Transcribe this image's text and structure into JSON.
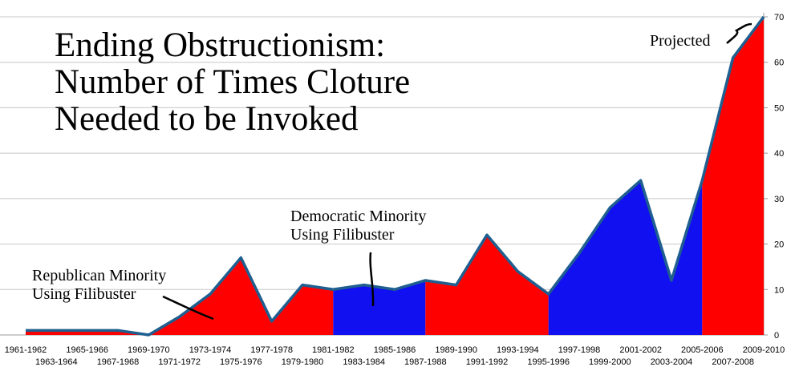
{
  "chart_data": {
    "type": "area",
    "title": [
      "Ending Obstructionism:",
      "Number of Times Cloture",
      "Needed to be Invoked"
    ],
    "categories": [
      "1961-1962",
      "1963-1964",
      "1965-1966",
      "1967-1968",
      "1969-1970",
      "1971-1972",
      "1973-1974",
      "1975-1976",
      "1977-1978",
      "1979-1980",
      "1981-1982",
      "1983-1984",
      "1985-1986",
      "1987-1988",
      "1989-1990",
      "1991-1992",
      "1993-1994",
      "1995-1996",
      "1997-1998",
      "1999-2000",
      "2001-2002",
      "2003-2004",
      "2005-2006",
      "2007-2008",
      "2009-2010"
    ],
    "values": [
      1,
      1,
      1,
      1,
      0,
      4,
      9,
      17,
      3,
      11,
      10,
      11,
      10,
      12,
      11,
      22,
      14,
      9,
      18,
      28,
      34,
      12,
      34,
      61,
      70
    ],
    "line_color": "#1f5f8f",
    "segments": [
      {
        "from": "1961-1962",
        "to": "1981-1982",
        "color": "#ff0000"
      },
      {
        "from": "1981-1982",
        "to": "1987-1988",
        "color": "#1010f0"
      },
      {
        "from": "1987-1988",
        "to": "1995-1996",
        "color": "#ff0000"
      },
      {
        "from": "1995-1996",
        "to": "2005-2006",
        "color": "#1010f0"
      },
      {
        "from": "2005-2006",
        "to": "2009-2010",
        "color": "#ff0000"
      }
    ],
    "ylim": [
      0,
      70
    ],
    "yticks": [
      0,
      10,
      20,
      30,
      40,
      50,
      60,
      70
    ],
    "grid": true,
    "annotations": {
      "republican": [
        "Republican Minority",
        "Using Filibuster"
      ],
      "democratic": [
        "Democratic Minority",
        "Using Filibuster"
      ],
      "projected": [
        "Projected"
      ]
    }
  }
}
